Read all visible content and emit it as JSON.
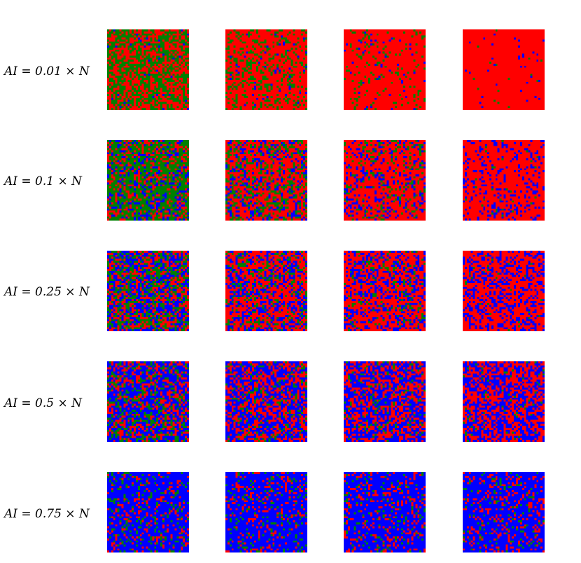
{
  "chart_data": {
    "type": "heatmap",
    "description_of_layout": "",
    "colors": {
      "state_a": "#ff0000",
      "state_b": "#008000",
      "state_c": "#0000ff"
    },
    "grid_size": 40,
    "rows": [
      {
        "label": "AI = 0.01 × N",
        "panels": [
          {
            "fraction_red": 0.47,
            "fraction_green": 0.5,
            "fraction_blue": 0.03
          },
          {
            "fraction_red": 0.75,
            "fraction_green": 0.22,
            "fraction_blue": 0.03
          },
          {
            "fraction_red": 0.88,
            "fraction_green": 0.09,
            "fraction_blue": 0.03
          },
          {
            "fraction_red": 0.97,
            "fraction_green": 0.01,
            "fraction_blue": 0.02
          }
        ]
      },
      {
        "label": "AI = 0.1 × N",
        "panels": [
          {
            "fraction_red": 0.25,
            "fraction_green": 0.55,
            "fraction_blue": 0.2
          },
          {
            "fraction_red": 0.55,
            "fraction_green": 0.27,
            "fraction_blue": 0.18
          },
          {
            "fraction_red": 0.68,
            "fraction_green": 0.14,
            "fraction_blue": 0.18
          },
          {
            "fraction_red": 0.8,
            "fraction_green": 0.02,
            "fraction_blue": 0.18
          }
        ]
      },
      {
        "label": "AI = 0.25 × N",
        "panels": [
          {
            "fraction_red": 0.3,
            "fraction_green": 0.35,
            "fraction_blue": 0.35
          },
          {
            "fraction_red": 0.52,
            "fraction_green": 0.16,
            "fraction_blue": 0.32
          },
          {
            "fraction_red": 0.58,
            "fraction_green": 0.1,
            "fraction_blue": 0.32
          },
          {
            "fraction_red": 0.66,
            "fraction_green": 0.02,
            "fraction_blue": 0.32
          }
        ]
      },
      {
        "label": "AI = 0.5 × N",
        "panels": [
          {
            "fraction_red": 0.28,
            "fraction_green": 0.22,
            "fraction_blue": 0.5
          },
          {
            "fraction_red": 0.38,
            "fraction_green": 0.12,
            "fraction_blue": 0.5
          },
          {
            "fraction_red": 0.42,
            "fraction_green": 0.08,
            "fraction_blue": 0.5
          },
          {
            "fraction_red": 0.46,
            "fraction_green": 0.04,
            "fraction_blue": 0.5
          }
        ]
      },
      {
        "label": "AI = 0.75 × N",
        "panels": [
          {
            "fraction_red": 0.13,
            "fraction_green": 0.12,
            "fraction_blue": 0.75
          },
          {
            "fraction_red": 0.16,
            "fraction_green": 0.09,
            "fraction_blue": 0.75
          },
          {
            "fraction_red": 0.17,
            "fraction_green": 0.08,
            "fraction_blue": 0.75
          },
          {
            "fraction_red": 0.19,
            "fraction_green": 0.06,
            "fraction_blue": 0.75
          }
        ]
      }
    ]
  }
}
